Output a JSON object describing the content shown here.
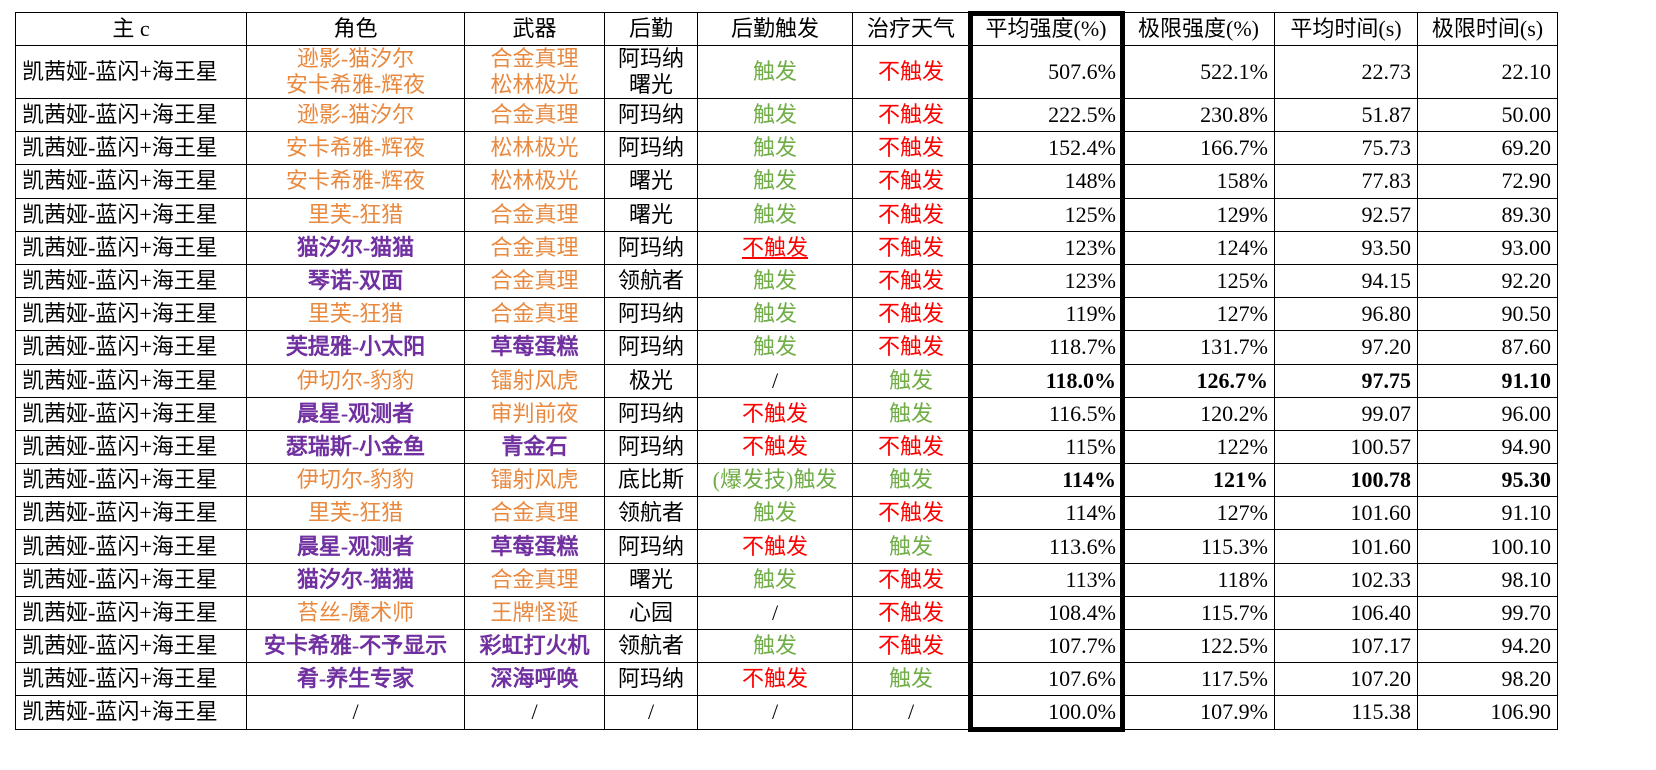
{
  "headers": [
    "主 c",
    "角色",
    "武器",
    "后勤",
    "后勤触发",
    "治疗天气",
    "平均强度(%)",
    "极限强度(%)",
    "平均时间(s)",
    "极限时间(s)"
  ],
  "colors": {
    "orange": "#E8893F",
    "purple": "#7030A0",
    "green": "#70AD47",
    "red": "#FF0000"
  },
  "rows": [
    {
      "main": "凯茜娅-蓝闪+海王星",
      "role": [
        "逊影-猫汐尔",
        "安卡希雅-辉夜"
      ],
      "roleColor": "orange",
      "weapon": [
        "合金真理",
        "松林极光"
      ],
      "weaponColor": "orange",
      "logi": [
        "阿玛纳",
        "曙光"
      ],
      "trigger": "触发",
      "triggerColor": "green",
      "heal": "不触发",
      "healColor": "red",
      "avg": "507.6%",
      "max": "522.1%",
      "avgT": "22.73",
      "maxT": "22.10"
    },
    {
      "main": "凯茜娅-蓝闪+海王星",
      "role": [
        "逊影-猫汐尔"
      ],
      "roleColor": "orange",
      "weapon": [
        "合金真理"
      ],
      "weaponColor": "orange",
      "logi": [
        "阿玛纳"
      ],
      "trigger": "触发",
      "triggerColor": "green",
      "heal": "不触发",
      "healColor": "red",
      "avg": "222.5%",
      "max": "230.8%",
      "avgT": "51.87",
      "maxT": "50.00"
    },
    {
      "main": "凯茜娅-蓝闪+海王星",
      "role": [
        "安卡希雅-辉夜"
      ],
      "roleColor": "orange",
      "weapon": [
        "松林极光"
      ],
      "weaponColor": "orange",
      "logi": [
        "阿玛纳"
      ],
      "trigger": "触发",
      "triggerColor": "green",
      "heal": "不触发",
      "healColor": "red",
      "avg": "152.4%",
      "max": "166.7%",
      "avgT": "75.73",
      "maxT": "69.20"
    },
    {
      "main": "凯茜娅-蓝闪+海王星",
      "role": [
        "安卡希雅-辉夜"
      ],
      "roleColor": "orange",
      "weapon": [
        "松林极光"
      ],
      "weaponColor": "orange",
      "logi": [
        "曙光"
      ],
      "trigger": "触发",
      "triggerColor": "green",
      "heal": "不触发",
      "healColor": "red",
      "avg": "148%",
      "max": "158%",
      "avgT": "77.83",
      "maxT": "72.90"
    },
    {
      "main": "凯茜娅-蓝闪+海王星",
      "role": [
        "里芙-狂猎"
      ],
      "roleColor": "orange",
      "weapon": [
        "合金真理"
      ],
      "weaponColor": "orange",
      "logi": [
        "曙光"
      ],
      "trigger": "触发",
      "triggerColor": "green",
      "heal": "不触发",
      "healColor": "red",
      "avg": "125%",
      "max": "129%",
      "avgT": "92.57",
      "maxT": "89.30"
    },
    {
      "main": "凯茜娅-蓝闪+海王星",
      "role": [
        "猫汐尔-猫猫"
      ],
      "roleColor": "purple",
      "weapon": [
        "合金真理"
      ],
      "weaponColor": "orange",
      "logi": [
        "阿玛纳"
      ],
      "trigger": "不触发",
      "triggerColor": "red",
      "triggerUnderline": true,
      "heal": "不触发",
      "healColor": "red",
      "avg": "123%",
      "max": "124%",
      "avgT": "93.50",
      "maxT": "93.00"
    },
    {
      "main": "凯茜娅-蓝闪+海王星",
      "role": [
        "琴诺-双面"
      ],
      "roleColor": "purple",
      "weapon": [
        "合金真理"
      ],
      "weaponColor": "orange",
      "logi": [
        "领航者"
      ],
      "trigger": "触发",
      "triggerColor": "green",
      "heal": "不触发",
      "healColor": "red",
      "avg": "123%",
      "max": "125%",
      "avgT": "94.15",
      "maxT": "92.20"
    },
    {
      "main": "凯茜娅-蓝闪+海王星",
      "role": [
        "里芙-狂猎"
      ],
      "roleColor": "orange",
      "weapon": [
        "合金真理"
      ],
      "weaponColor": "orange",
      "logi": [
        "阿玛纳"
      ],
      "trigger": "触发",
      "triggerColor": "green",
      "heal": "不触发",
      "healColor": "red",
      "avg": "119%",
      "max": "127%",
      "avgT": "96.80",
      "maxT": "90.50"
    },
    {
      "main": "凯茜娅-蓝闪+海王星",
      "role": [
        "芙提雅-小太阳"
      ],
      "roleColor": "purple",
      "weapon": [
        "草莓蛋糕"
      ],
      "weaponColor": "purple",
      "logi": [
        "阿玛纳"
      ],
      "trigger": "触发",
      "triggerColor": "green",
      "heal": "不触发",
      "healColor": "red",
      "avg": "118.7%",
      "max": "131.7%",
      "avgT": "97.20",
      "maxT": "87.60"
    },
    {
      "main": "凯茜娅-蓝闪+海王星",
      "role": [
        "伊切尔-豹豹"
      ],
      "roleColor": "orange",
      "weapon": [
        "镭射风虎"
      ],
      "weaponColor": "orange",
      "logi": [
        "极光"
      ],
      "trigger": "/",
      "triggerColor": "",
      "heal": "触发",
      "healColor": "green",
      "avg": "118.0%",
      "max": "126.7%",
      "avgT": "97.75",
      "maxT": "91.10",
      "bold": true
    },
    {
      "main": "凯茜娅-蓝闪+海王星",
      "role": [
        "晨星-观测者"
      ],
      "roleColor": "purple",
      "weapon": [
        "审判前夜"
      ],
      "weaponColor": "orange",
      "logi": [
        "阿玛纳"
      ],
      "trigger": "不触发",
      "triggerColor": "red",
      "heal": "触发",
      "healColor": "green",
      "avg": "116.5%",
      "max": "120.2%",
      "avgT": "99.07",
      "maxT": "96.00"
    },
    {
      "main": "凯茜娅-蓝闪+海王星",
      "role": [
        "瑟瑞斯-小金鱼"
      ],
      "roleColor": "purple",
      "weapon": [
        "青金石"
      ],
      "weaponColor": "purple",
      "logi": [
        "阿玛纳"
      ],
      "trigger": "不触发",
      "triggerColor": "red",
      "heal": "不触发",
      "healColor": "red",
      "avg": "115%",
      "max": "122%",
      "avgT": "100.57",
      "maxT": "94.90"
    },
    {
      "main": "凯茜娅-蓝闪+海王星",
      "role": [
        "伊切尔-豹豹"
      ],
      "roleColor": "orange",
      "weapon": [
        "镭射风虎"
      ],
      "weaponColor": "orange",
      "logi": [
        "底比斯"
      ],
      "trigger": "(爆发技)触发",
      "triggerColor": "green",
      "heal": "触发",
      "healColor": "green",
      "avg": "114%",
      "max": "121%",
      "avgT": "100.78",
      "maxT": "95.30",
      "bold": true
    },
    {
      "main": "凯茜娅-蓝闪+海王星",
      "role": [
        "里芙-狂猎"
      ],
      "roleColor": "orange",
      "weapon": [
        "合金真理"
      ],
      "weaponColor": "orange",
      "logi": [
        "领航者"
      ],
      "trigger": "触发",
      "triggerColor": "green",
      "heal": "不触发",
      "healColor": "red",
      "avg": "114%",
      "max": "127%",
      "avgT": "101.60",
      "maxT": "91.10"
    },
    {
      "main": "凯茜娅-蓝闪+海王星",
      "role": [
        "晨星-观测者"
      ],
      "roleColor": "purple",
      "weapon": [
        "草莓蛋糕"
      ],
      "weaponColor": "purple",
      "logi": [
        "阿玛纳"
      ],
      "trigger": "不触发",
      "triggerColor": "red",
      "heal": "触发",
      "healColor": "green",
      "avg": "113.6%",
      "max": "115.3%",
      "avgT": "101.60",
      "maxT": "100.10"
    },
    {
      "main": "凯茜娅-蓝闪+海王星",
      "role": [
        "猫汐尔-猫猫"
      ],
      "roleColor": "purple",
      "weapon": [
        "合金真理"
      ],
      "weaponColor": "orange",
      "logi": [
        "曙光"
      ],
      "trigger": "触发",
      "triggerColor": "green",
      "heal": "不触发",
      "healColor": "red",
      "avg": "113%",
      "max": "118%",
      "avgT": "102.33",
      "maxT": "98.10"
    },
    {
      "main": "凯茜娅-蓝闪+海王星",
      "role": [
        "苔丝-魔术师"
      ],
      "roleColor": "orange",
      "weapon": [
        "王牌怪诞"
      ],
      "weaponColor": "orange",
      "logi": [
        "心园"
      ],
      "trigger": "/",
      "triggerColor": "",
      "heal": "不触发",
      "healColor": "red",
      "avg": "108.4%",
      "max": "115.7%",
      "avgT": "106.40",
      "maxT": "99.70"
    },
    {
      "main": "凯茜娅-蓝闪+海王星",
      "role": [
        "安卡希雅-不予显示"
      ],
      "roleColor": "purple",
      "weapon": [
        "彩虹打火机"
      ],
      "weaponColor": "purple",
      "logi": [
        "领航者"
      ],
      "trigger": "触发",
      "triggerColor": "green",
      "heal": "不触发",
      "healColor": "red",
      "avg": "107.7%",
      "max": "122.5%",
      "avgT": "107.17",
      "maxT": "94.20"
    },
    {
      "main": "凯茜娅-蓝闪+海王星",
      "role": [
        "肴-养生专家"
      ],
      "roleColor": "purple",
      "weapon": [
        "深海呼唤"
      ],
      "weaponColor": "purple",
      "logi": [
        "阿玛纳"
      ],
      "trigger": "不触发",
      "triggerColor": "red",
      "heal": "触发",
      "healColor": "green",
      "avg": "107.6%",
      "max": "117.5%",
      "avgT": "107.20",
      "maxT": "98.20"
    },
    {
      "main": "凯茜娅-蓝闪+海王星",
      "role": [
        "/"
      ],
      "roleColor": "",
      "weapon": [
        "/"
      ],
      "weaponColor": "",
      "logi": [
        "/"
      ],
      "trigger": "/",
      "triggerColor": "",
      "heal": "/",
      "healColor": "",
      "avg": "100.0%",
      "max": "107.9%",
      "avgT": "115.38",
      "maxT": "106.90"
    }
  ]
}
